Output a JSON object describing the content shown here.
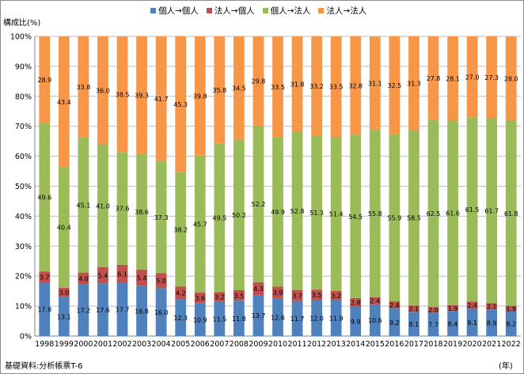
{
  "chart_data": {
    "type": "bar",
    "stacked": true,
    "percent": true,
    "title": "",
    "ylabel": "構成比(%)",
    "xlabel": "(年)",
    "ylim": [
      0,
      100
    ],
    "yticks": [
      "0%",
      "10%",
      "20%",
      "30%",
      "40%",
      "50%",
      "60%",
      "70%",
      "80%",
      "90%",
      "100%"
    ],
    "grid": true,
    "legend_position": "top",
    "source": "基礎資料:分析帳票T-6",
    "categories": [
      "1998",
      "1999",
      "2000",
      "2001",
      "2002",
      "2003",
      "2004",
      "2005",
      "2006",
      "2007",
      "2008",
      "2009",
      "2010",
      "2011",
      "2012",
      "2013",
      "2014",
      "2015",
      "2016",
      "2017",
      "2018",
      "2019",
      "2020",
      "2021",
      "2022"
    ],
    "series": [
      {
        "name": "個人→個人",
        "color": "#4f81bd",
        "values": [
          17.8,
          13.1,
          17.2,
          17.6,
          17.7,
          16.8,
          16.0,
          12.3,
          10.9,
          11.5,
          11.8,
          13.7,
          12.6,
          11.7,
          12.0,
          11.9,
          9.9,
          10.6,
          9.2,
          8.1,
          7.7,
          8.4,
          9.1,
          8.9,
          8.2
        ]
      },
      {
        "name": "法人→個人",
        "color": "#c0504d",
        "values": [
          3.7,
          3.0,
          4.0,
          5.4,
          6.1,
          5.4,
          5.0,
          4.2,
          3.6,
          3.2,
          3.5,
          4.3,
          3.9,
          3.7,
          3.5,
          3.2,
          2.8,
          2.4,
          2.4,
          2.1,
          2.0,
          1.9,
          2.4,
          2.1,
          1.9
        ]
      },
      {
        "name": "個人→法人",
        "color": "#9bbb59",
        "values": [
          49.6,
          40.4,
          45.1,
          41.0,
          37.6,
          38.6,
          37.3,
          38.2,
          45.7,
          49.5,
          50.2,
          52.2,
          49.9,
          52.8,
          51.3,
          51.4,
          54.5,
          55.8,
          55.9,
          58.5,
          62.5,
          61.6,
          61.5,
          61.7,
          61.8
        ]
      },
      {
        "name": "法人→法人",
        "color": "#f79646",
        "values": [
          28.9,
          43.4,
          33.8,
          36.0,
          38.5,
          39.3,
          41.7,
          45.3,
          39.8,
          35.8,
          34.5,
          29.8,
          33.5,
          31.8,
          33.2,
          33.5,
          32.8,
          31.1,
          32.5,
          31.3,
          27.8,
          28.1,
          27.0,
          27.3,
          28.0
        ]
      }
    ]
  }
}
